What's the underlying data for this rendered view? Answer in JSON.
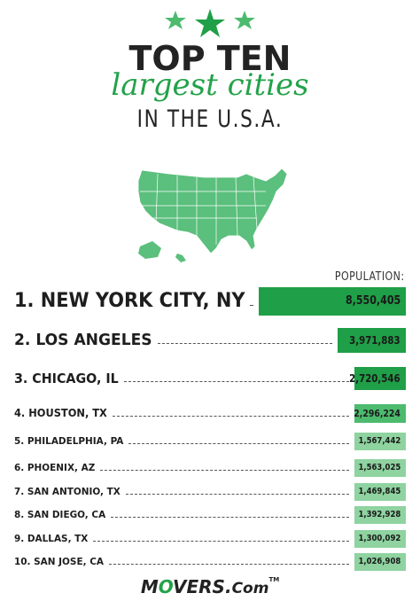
{
  "header": {
    "line1": "TOP TEN",
    "line2": "largest cities",
    "line3": "IN THE U.S.A."
  },
  "icons": {
    "stars": "star-icon",
    "map": "usa-map-icon"
  },
  "colors": {
    "dark_green": "#1f9f47",
    "mid_green": "#4cbb6e",
    "light_green": "#8fd3a0",
    "map_green": "#5bbf7d"
  },
  "chart_data": {
    "type": "bar",
    "orientation": "horizontal",
    "value_header": "POPULATION:",
    "categories": [
      "1. NEW YORK CITY, NY",
      "2. LOS ANGELES",
      "3. CHICAGO, IL",
      "4. HOUSTON, TX",
      "5. PHILADELPHIA, PA",
      "6. PHOENIX, AZ",
      "7. SAN ANTONIO, TX",
      "8. SAN DIEGO, CA",
      "9. DALLAS, TX",
      "10. SAN JOSE, CA"
    ],
    "values": [
      8550405,
      3971883,
      2720546,
      2296224,
      1567442,
      1563025,
      1469845,
      1392928,
      1300092,
      1026908
    ],
    "value_labels": [
      "8,550,405",
      "3,971,883",
      "2,720,546",
      "2,296,224",
      "1,567,442",
      "1,563,025",
      "1,469,845",
      "1,392,928",
      "1,300,092",
      "1,026,908"
    ]
  },
  "footer": {
    "logo_pre": "M",
    "logo_o": "O",
    "logo_post": "VERS.",
    "logo_com": "Com",
    "logo_tm": "TM"
  }
}
